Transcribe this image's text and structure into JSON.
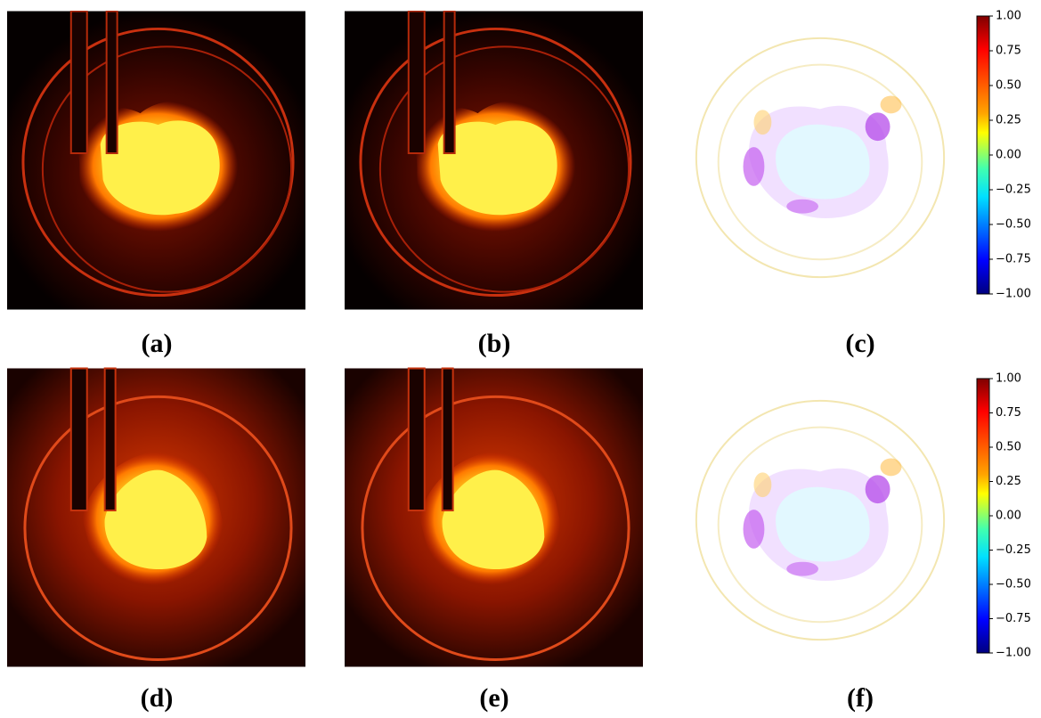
{
  "panels": [
    {
      "label": "(a)"
    },
    {
      "label": "(b)"
    },
    {
      "label": "(c)"
    },
    {
      "label": "(d)"
    },
    {
      "label": "(e)"
    },
    {
      "label": "(f)"
    }
  ],
  "colorbars": [
    {
      "ticks": [
        {
          "value": 1,
          "label": "1.00"
        },
        {
          "value": 0.75,
          "label": "0.75"
        },
        {
          "value": 0.5,
          "label": "0.50"
        },
        {
          "value": 0.25,
          "label": "0.25"
        },
        {
          "value": 0,
          "label": "0.00"
        },
        {
          "value": -0.25,
          "label": "−0.25"
        },
        {
          "value": -0.5,
          "label": "−0.50"
        },
        {
          "value": -0.75,
          "label": "−0.75"
        },
        {
          "value": -1,
          "label": "−1.00"
        }
      ]
    },
    {
      "ticks": [
        {
          "value": 1,
          "label": "1.00"
        },
        {
          "value": 0.75,
          "label": "0.75"
        },
        {
          "value": 0.5,
          "label": "0.50"
        },
        {
          "value": 0.25,
          "label": "0.25"
        },
        {
          "value": 0,
          "label": "0.00"
        },
        {
          "value": -0.25,
          "label": "−0.25"
        },
        {
          "value": -0.5,
          "label": "−0.50"
        },
        {
          "value": -0.75,
          "label": "−0.75"
        },
        {
          "value": -1,
          "label": "−1.00"
        }
      ]
    }
  ]
}
